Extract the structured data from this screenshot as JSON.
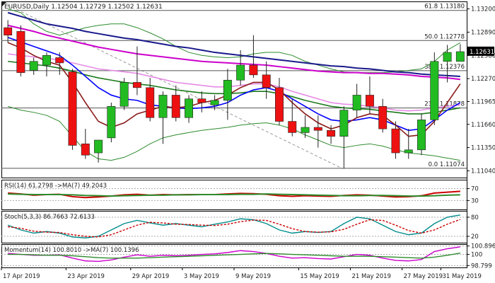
{
  "chart_data": [
    {
      "type": "candlestick",
      "title": "EURUSD,Daily  1.12504 1.12729 1.12502 1.12631",
      "x_labels": [
        "17 Apr 2019",
        "23 Apr 2019",
        "29 Apr 2019",
        "3 May 2019",
        "9 May 2019",
        "15 May 2019",
        "21 May 2019",
        "27 May 2019",
        "31 May 2019"
      ],
      "y_ticks": [
        "1.13200",
        "1.12890",
        "1.12580",
        "1.12270",
        "1.11965",
        "1.11660",
        "1.11350",
        "1.11040"
      ],
      "ylim": [
        1.1095,
        1.133
      ],
      "last_price": "1.12631",
      "last_price_value": 1.12631,
      "fib_levels": [
        {
          "label": "61.8 1.13180",
          "value": 1.1318
        },
        {
          "label": "50.0 1.12778",
          "value": 1.12778
        },
        {
          "label": "38.2 1.12376",
          "value": 1.12376
        },
        {
          "label": "23.6 1.11878",
          "value": 1.11878
        },
        {
          "label": "0.0 1.11074",
          "value": 1.11074
        }
      ],
      "candles": [
        {
          "o": 1.1295,
          "h": 1.1305,
          "l": 1.1275,
          "c": 1.1285
        },
        {
          "o": 1.129,
          "h": 1.1298,
          "l": 1.123,
          "c": 1.1235
        },
        {
          "o": 1.1238,
          "h": 1.1255,
          "l": 1.1232,
          "c": 1.125
        },
        {
          "o": 1.1245,
          "h": 1.1262,
          "l": 1.123,
          "c": 1.1258
        },
        {
          "o": 1.1255,
          "h": 1.1262,
          "l": 1.1232,
          "c": 1.1248
        },
        {
          "o": 1.1236,
          "h": 1.124,
          "l": 1.1132,
          "c": 1.1138
        },
        {
          "o": 1.114,
          "h": 1.116,
          "l": 1.112,
          "c": 1.1125
        },
        {
          "o": 1.1128,
          "h": 1.1145,
          "l": 1.1115,
          "c": 1.1145
        },
        {
          "o": 1.1148,
          "h": 1.1195,
          "l": 1.1142,
          "c": 1.119
        },
        {
          "o": 1.119,
          "h": 1.1228,
          "l": 1.1185,
          "c": 1.1222
        },
        {
          "o": 1.1222,
          "h": 1.127,
          "l": 1.1205,
          "c": 1.1215
        },
        {
          "o": 1.1215,
          "h": 1.1228,
          "l": 1.117,
          "c": 1.1175
        },
        {
          "o": 1.1175,
          "h": 1.121,
          "l": 1.114,
          "c": 1.1205
        },
        {
          "o": 1.1205,
          "h": 1.1218,
          "l": 1.117,
          "c": 1.1175
        },
        {
          "o": 1.1175,
          "h": 1.1205,
          "l": 1.1168,
          "c": 1.12
        },
        {
          "o": 1.12,
          "h": 1.121,
          "l": 1.1182,
          "c": 1.1195
        },
        {
          "o": 1.1192,
          "h": 1.1205,
          "l": 1.1185,
          "c": 1.1198
        },
        {
          "o": 1.1198,
          "h": 1.124,
          "l": 1.1172,
          "c": 1.1225
        },
        {
          "o": 1.1225,
          "h": 1.1265,
          "l": 1.1218,
          "c": 1.1245
        },
        {
          "o": 1.1245,
          "h": 1.1285,
          "l": 1.1228,
          "c": 1.1232
        },
        {
          "o": 1.1232,
          "h": 1.125,
          "l": 1.12,
          "c": 1.1215
        },
        {
          "o": 1.1215,
          "h": 1.1228,
          "l": 1.1165,
          "c": 1.117
        },
        {
          "o": 1.117,
          "h": 1.12,
          "l": 1.115,
          "c": 1.1155
        },
        {
          "o": 1.1155,
          "h": 1.1178,
          "l": 1.1148,
          "c": 1.1162
        },
        {
          "o": 1.1162,
          "h": 1.1178,
          "l": 1.1135,
          "c": 1.1158
        },
        {
          "o": 1.1158,
          "h": 1.1165,
          "l": 1.114,
          "c": 1.115
        },
        {
          "o": 1.115,
          "h": 1.119,
          "l": 1.1107,
          "c": 1.1185
        },
        {
          "o": 1.1185,
          "h": 1.122,
          "l": 1.1175,
          "c": 1.1205
        },
        {
          "o": 1.1205,
          "h": 1.123,
          "l": 1.118,
          "c": 1.119
        },
        {
          "o": 1.119,
          "h": 1.12,
          "l": 1.1155,
          "c": 1.116
        },
        {
          "o": 1.116,
          "h": 1.117,
          "l": 1.112,
          "c": 1.1128
        },
        {
          "o": 1.1128,
          "h": 1.116,
          "l": 1.112,
          "c": 1.1132
        },
        {
          "o": 1.1132,
          "h": 1.118,
          "l": 1.1125,
          "c": 1.1172
        },
        {
          "o": 1.1172,
          "h": 1.1262,
          "l": 1.1165,
          "c": 1.125
        },
        {
          "o": 1.125,
          "h": 1.1272,
          "l": 1.1222,
          "c": 1.1262
        },
        {
          "o": 1.125,
          "h": 1.1273,
          "l": 1.125,
          "c": 1.1263
        }
      ],
      "moving_averages": [
        {
          "color": "#1a1a8c",
          "values": [
            1.1315,
            1.131,
            1.1305,
            1.13,
            1.1297,
            1.1294,
            1.129,
            1.1287,
            1.1284,
            1.1281,
            1.1279,
            1.1276,
            1.1273,
            1.127,
            1.1268,
            1.1265,
            1.1262,
            1.126,
            1.1258,
            1.1256,
            1.1254,
            1.1252,
            1.125,
            1.1248,
            1.1246,
            1.1244,
            1.1243,
            1.1241,
            1.124,
            1.1238,
            1.1236,
            1.1235,
            1.1233,
            1.1232,
            1.1231,
            1.123
          ]
        },
        {
          "color": "#cc00cc",
          "values": [
            1.1298,
            1.1294,
            1.129,
            1.1285,
            1.1281,
            1.1277,
            1.1273,
            1.1269,
            1.1266,
            1.1263,
            1.126,
            1.1258,
            1.1256,
            1.1254,
            1.1252,
            1.125,
            1.1249,
            1.1248,
            1.1247,
            1.1246,
            1.1245,
            1.1243,
            1.1241,
            1.1239,
            1.1237,
            1.1236,
            1.1235,
            1.1235,
            1.1234,
            1.1234,
            1.1233,
            1.1232,
            1.123,
            1.1229,
            1.1228,
            1.1226
          ]
        },
        {
          "color": "#e68ce6",
          "values": [
            1.126,
            1.1258,
            1.1256,
            1.1254,
            1.1252,
            1.1248,
            1.1244,
            1.124,
            1.1238,
            1.1236,
            1.1234,
            1.123,
            1.1226,
            1.1222,
            1.122,
            1.1218,
            1.1216,
            1.1216,
            1.1218,
            1.122,
            1.122,
            1.1216,
            1.121,
            1.1205,
            1.12,
            1.1195,
            1.1193,
            1.1192,
            1.119,
            1.1188,
            1.1185,
            1.1184,
            1.1185,
            1.1188,
            1.119,
            1.1192
          ]
        },
        {
          "color": "#1c7a1c",
          "values": [
            1.125,
            1.1248,
            1.1246,
            1.1244,
            1.1241,
            1.1237,
            1.1232,
            1.1228,
            1.1225,
            1.1222,
            1.122,
            1.1218,
            1.1215,
            1.1212,
            1.121,
            1.1208,
            1.1207,
            1.1207,
            1.1208,
            1.121,
            1.121,
            1.1207,
            1.1203,
            1.1198,
            1.1194,
            1.119,
            1.1188,
            1.1187,
            1.1186,
            1.1184,
            1.1182,
            1.118,
            1.118,
            1.1182,
            1.1185,
            1.1188
          ]
        },
        {
          "color": "#0000ff",
          "values": [
            1.1282,
            1.1276,
            1.127,
            1.1264,
            1.1258,
            1.1245,
            1.123,
            1.1215,
            1.1205,
            1.12,
            1.1198,
            1.1192,
            1.119,
            1.1188,
            1.1187,
            1.1188,
            1.119,
            1.1195,
            1.1205,
            1.1212,
            1.1215,
            1.121,
            1.12,
            1.119,
            1.118,
            1.1172,
            1.117,
            1.1172,
            1.1175,
            1.1172,
            1.1165,
            1.1158,
            1.116,
            1.1172,
            1.1185,
            1.1195
          ]
        },
        {
          "color": "#8b1a1a",
          "values": [
            1.1275,
            1.1268,
            1.1258,
            1.125,
            1.1245,
            1.1222,
            1.1195,
            1.117,
            1.1162,
            1.1168,
            1.118,
            1.1185,
            1.119,
            1.1188,
            1.119,
            1.1195,
            1.1198,
            1.1205,
            1.1215,
            1.1222,
            1.1222,
            1.1212,
            1.1195,
            1.118,
            1.1168,
            1.116,
            1.1165,
            1.1175,
            1.118,
            1.1178,
            1.1165,
            1.115,
            1.1152,
            1.117,
            1.1195,
            1.122
          ]
        }
      ],
      "bollinger": {
        "color": "#2e8b2e",
        "upper": [
          1.132,
          1.1315,
          1.13,
          1.129,
          1.1285,
          1.129,
          1.1295,
          1.1298,
          1.13,
          1.13,
          1.1295,
          1.1288,
          1.128,
          1.127,
          1.1262,
          1.1258,
          1.1256,
          1.1255,
          1.1256,
          1.126,
          1.1262,
          1.1262,
          1.1258,
          1.125,
          1.1245,
          1.124,
          1.1236,
          1.1235,
          1.1235,
          1.1235,
          1.1236,
          1.1238,
          1.124,
          1.125,
          1.1265,
          1.1275
        ],
        "lower": [
          1.119,
          1.1185,
          1.1182,
          1.1178,
          1.117,
          1.115,
          1.113,
          1.112,
          1.1118,
          1.1122,
          1.113,
          1.114,
          1.1148,
          1.1152,
          1.1155,
          1.1158,
          1.116,
          1.1162,
          1.1165,
          1.1167,
          1.1168,
          1.1165,
          1.116,
          1.1152,
          1.1145,
          1.1138,
          1.1135,
          1.1138,
          1.114,
          1.1137,
          1.1132,
          1.1128,
          1.1126,
          1.1124,
          1.1121,
          1.1118
        ]
      }
    },
    {
      "type": "line",
      "title": "RSI(14) 61.2798  ->MA(7) 49.2043",
      "y_ticks": [
        "70",
        "30"
      ],
      "ylim": [
        0,
        100
      ],
      "series": [
        {
          "color": "#cc0000",
          "values": [
            55,
            52,
            48,
            50,
            51,
            43,
            40,
            42,
            45,
            49,
            51,
            48,
            50,
            49,
            50,
            50,
            50,
            52,
            54,
            53,
            51,
            46,
            44,
            46,
            45,
            44,
            47,
            49,
            48,
            45,
            42,
            43,
            46,
            55,
            58,
            61
          ]
        },
        {
          "color": "#2e8b2e",
          "values": [
            52,
            51,
            50,
            50,
            50,
            49,
            47,
            46,
            45,
            46,
            47,
            48,
            48,
            49,
            49,
            50,
            50,
            50,
            51,
            51,
            52,
            51,
            50,
            49,
            48,
            47,
            46,
            46,
            47,
            47,
            46,
            45,
            45,
            46,
            48,
            49
          ]
        }
      ]
    },
    {
      "type": "line",
      "title": "Stoch(5,3,3) 86.7663 72.6133",
      "y_ticks": [
        "80",
        "20"
      ],
      "ylim": [
        0,
        100
      ],
      "series": [
        {
          "color": "#008b8b",
          "values": [
            55,
            40,
            30,
            35,
            30,
            18,
            15,
            20,
            40,
            60,
            70,
            62,
            55,
            60,
            55,
            50,
            58,
            65,
            75,
            72,
            60,
            40,
            30,
            35,
            32,
            35,
            60,
            80,
            75,
            55,
            35,
            25,
            30,
            60,
            80,
            87
          ]
        },
        {
          "color": "#cc0000",
          "values": [
            50,
            45,
            36,
            33,
            32,
            25,
            20,
            18,
            25,
            40,
            55,
            64,
            62,
            58,
            57,
            55,
            54,
            58,
            66,
            71,
            70,
            58,
            44,
            35,
            33,
            34,
            42,
            58,
            72,
            70,
            55,
            38,
            30,
            40,
            58,
            73
          ]
        }
      ]
    },
    {
      "type": "line",
      "title": "Momentum(14) 100.8010  ->MA(7) 100.1396",
      "y_ticks": [
        "100.8963",
        "100",
        "98.799"
      ],
      "ylim": [
        98.6,
        101.1
      ],
      "series": [
        {
          "color": "#cc00cc",
          "values": [
            100.1,
            100.0,
            99.9,
            99.9,
            99.95,
            99.6,
            99.3,
            99.25,
            99.4,
            99.7,
            99.95,
            99.8,
            99.9,
            99.85,
            99.9,
            100.0,
            100.05,
            100.2,
            100.4,
            100.3,
            100.1,
            99.8,
            99.6,
            99.65,
            99.55,
            99.5,
            99.75,
            100.0,
            99.9,
            99.6,
            99.35,
            99.3,
            99.45,
            100.3,
            100.6,
            100.8
          ]
        },
        {
          "color": "#2e8b2e",
          "values": [
            100.0,
            100.0,
            99.95,
            99.9,
            99.9,
            99.85,
            99.75,
            99.65,
            99.6,
            99.6,
            99.6,
            99.65,
            99.7,
            99.75,
            99.8,
            99.85,
            99.9,
            99.95,
            100.0,
            100.05,
            100.1,
            100.05,
            100.0,
            99.95,
            99.9,
            99.85,
            99.8,
            99.8,
            99.8,
            99.75,
            99.7,
            99.65,
            99.6,
            99.7,
            99.9,
            100.14
          ]
        }
      ]
    }
  ],
  "toolbar": {
    "corner_icon": "chart-corner-icon"
  }
}
